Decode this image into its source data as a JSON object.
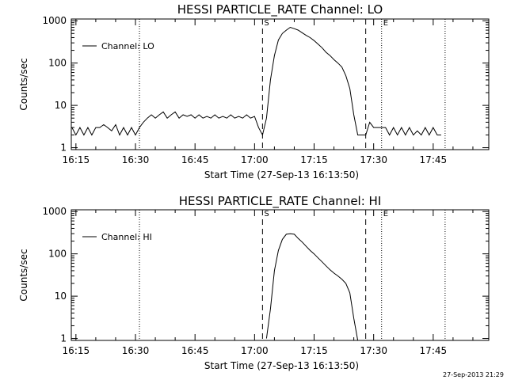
{
  "footer": {
    "timestamp": "27-Sep-2013 21:29"
  },
  "chart_data": [
    {
      "type": "line",
      "title": "HESSI PARTICLE_RATE Channel: LO",
      "xlabel": "Start Time (27-Sep-13 16:13:50)",
      "ylabel": "Counts/sec",
      "yscale": "log",
      "ylim": [
        0.9,
        1100
      ],
      "xlim": [
        "16:13:50",
        "17:59:00"
      ],
      "x_ticks": [
        "16:15",
        "16:30",
        "16:45",
        "17:00",
        "17:15",
        "17:30",
        "17:45"
      ],
      "y_ticks": [
        "1",
        "10",
        "100",
        "1000"
      ],
      "legend": {
        "label": "Channel: LO",
        "position": "top-left"
      },
      "markers": [
        {
          "time": "17:02",
          "label": "S",
          "style": "dashed"
        },
        {
          "time": "17:28",
          "label": "",
          "style": "dashed"
        },
        {
          "time": "16:31",
          "label": "",
          "style": "dotted"
        },
        {
          "time": "17:32",
          "label": "E",
          "style": "dotted"
        },
        {
          "time": "17:48",
          "label": "",
          "style": "dotted"
        }
      ],
      "series": [
        {
          "name": "Channel: LO",
          "points": [
            [
              "16:14",
              3
            ],
            [
              "16:15",
              2
            ],
            [
              "16:16",
              3
            ],
            [
              "16:17",
              2
            ],
            [
              "16:18",
              3
            ],
            [
              "16:19",
              2
            ],
            [
              "16:20",
              3
            ],
            [
              "16:21",
              3
            ],
            [
              "16:22",
              3.5
            ],
            [
              "16:23",
              3
            ],
            [
              "16:24",
              2.5
            ],
            [
              "16:25",
              3.5
            ],
            [
              "16:26",
              2
            ],
            [
              "16:27",
              3
            ],
            [
              "16:28",
              2
            ],
            [
              "16:29",
              3
            ],
            [
              "16:30",
              2
            ],
            [
              "16:31",
              3
            ],
            [
              "16:32",
              4
            ],
            [
              "16:33",
              5
            ],
            [
              "16:34",
              6
            ],
            [
              "16:35",
              5
            ],
            [
              "16:36",
              6
            ],
            [
              "16:37",
              7
            ],
            [
              "16:38",
              5
            ],
            [
              "16:39",
              6
            ],
            [
              "16:40",
              7
            ],
            [
              "16:41",
              5
            ],
            [
              "16:42",
              6
            ],
            [
              "16:43",
              5.5
            ],
            [
              "16:44",
              6
            ],
            [
              "16:45",
              5
            ],
            [
              "16:46",
              6
            ],
            [
              "16:47",
              5
            ],
            [
              "16:48",
              5.5
            ],
            [
              "16:49",
              5
            ],
            [
              "16:50",
              6
            ],
            [
              "16:51",
              5
            ],
            [
              "16:52",
              5.5
            ],
            [
              "16:53",
              5
            ],
            [
              "16:54",
              6
            ],
            [
              "16:55",
              5
            ],
            [
              "16:56",
              5.5
            ],
            [
              "16:57",
              5
            ],
            [
              "16:58",
              6
            ],
            [
              "16:59",
              5
            ],
            [
              "17:00",
              5.5
            ],
            [
              "17:01",
              3
            ],
            [
              "17:02",
              2
            ],
            [
              "17:03",
              5
            ],
            [
              "17:04",
              40
            ],
            [
              "17:05",
              150
            ],
            [
              "17:06",
              350
            ],
            [
              "17:07",
              500
            ],
            [
              "17:08",
              600
            ],
            [
              "17:09",
              700
            ],
            [
              "17:10",
              650
            ],
            [
              "17:11",
              600
            ],
            [
              "17:12",
              520
            ],
            [
              "17:13",
              450
            ],
            [
              "17:14",
              400
            ],
            [
              "17:15",
              340
            ],
            [
              "17:16",
              280
            ],
            [
              "17:17",
              230
            ],
            [
              "17:18",
              180
            ],
            [
              "17:19",
              150
            ],
            [
              "17:20",
              120
            ],
            [
              "17:21",
              100
            ],
            [
              "17:22",
              80
            ],
            [
              "17:23",
              50
            ],
            [
              "17:24",
              25
            ],
            [
              "17:25",
              6
            ],
            [
              "17:26",
              2
            ],
            [
              "17:27",
              2
            ],
            [
              "17:28",
              2
            ],
            [
              "17:29",
              4
            ],
            [
              "17:30",
              3
            ],
            [
              "17:31",
              3
            ],
            [
              "17:32",
              3
            ],
            [
              "17:33",
              3
            ],
            [
              "17:34",
              2
            ],
            [
              "17:35",
              3
            ],
            [
              "17:36",
              2
            ],
            [
              "17:37",
              3
            ],
            [
              "17:38",
              2
            ],
            [
              "17:39",
              3
            ],
            [
              "17:40",
              2
            ],
            [
              "17:41",
              2.5
            ],
            [
              "17:42",
              2
            ],
            [
              "17:43",
              3
            ],
            [
              "17:44",
              2
            ],
            [
              "17:45",
              3
            ],
            [
              "17:46",
              2
            ],
            [
              "17:47",
              2
            ]
          ]
        }
      ]
    },
    {
      "type": "line",
      "title": "HESSI PARTICLE_RATE Channel: HI",
      "xlabel": "Start Time (27-Sep-13 16:13:50)",
      "ylabel": "Counts/sec",
      "yscale": "log",
      "ylim": [
        0.9,
        1100
      ],
      "xlim": [
        "16:13:50",
        "17:59:00"
      ],
      "x_ticks": [
        "16:15",
        "16:30",
        "16:45",
        "17:00",
        "17:15",
        "17:30",
        "17:45"
      ],
      "y_ticks": [
        "1",
        "10",
        "100",
        "1000"
      ],
      "legend": {
        "label": "Channel: HI",
        "position": "top-left"
      },
      "markers": [
        {
          "time": "17:02",
          "label": "S",
          "style": "dashed"
        },
        {
          "time": "17:28",
          "label": "",
          "style": "dashed"
        },
        {
          "time": "16:31",
          "label": "",
          "style": "dotted"
        },
        {
          "time": "17:32",
          "label": "E",
          "style": "dotted"
        },
        {
          "time": "17:48",
          "label": "",
          "style": "dotted"
        }
      ],
      "series": [
        {
          "name": "Channel: HI",
          "points": [
            [
              "17:03",
              1
            ],
            [
              "17:04",
              5
            ],
            [
              "17:05",
              40
            ],
            [
              "17:06",
              120
            ],
            [
              "17:07",
              220
            ],
            [
              "17:08",
              290
            ],
            [
              "17:09",
              300
            ],
            [
              "17:10",
              290
            ],
            [
              "17:11",
              230
            ],
            [
              "17:12",
              190
            ],
            [
              "17:13",
              150
            ],
            [
              "17:14",
              120
            ],
            [
              "17:15",
              100
            ],
            [
              "17:16",
              80
            ],
            [
              "17:17",
              65
            ],
            [
              "17:18",
              52
            ],
            [
              "17:19",
              42
            ],
            [
              "17:20",
              35
            ],
            [
              "17:21",
              30
            ],
            [
              "17:22",
              25
            ],
            [
              "17:23",
              20
            ],
            [
              "17:24",
              12
            ],
            [
              "17:25",
              3
            ],
            [
              "17:26",
              0.9
            ]
          ]
        }
      ]
    }
  ]
}
